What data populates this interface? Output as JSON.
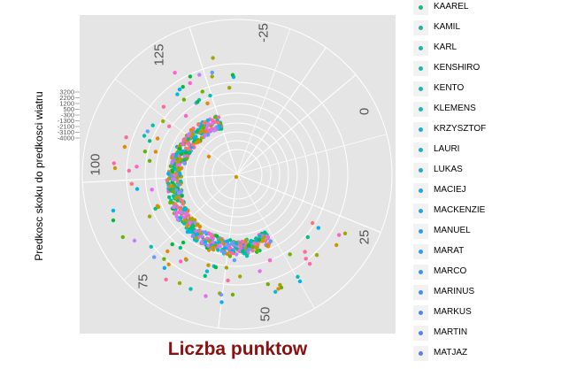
{
  "chart_data": {
    "type": "scatter",
    "coordinate_system": "polar",
    "xlabel": "Liczba punktow",
    "ylabel": "Predkosc skoku do predkosci wiatru",
    "angle_ticks": [
      "125",
      "-25",
      "0",
      "25",
      "50",
      "75",
      "100"
    ],
    "radial_ticks": [
      "3200",
      "2200",
      "1200",
      "500",
      "-300",
      "-1300",
      "-2100",
      "-3100",
      "-4000"
    ],
    "grid": true,
    "legend_position": "right",
    "legend": [
      {
        "label": "KAAREL",
        "color": "#1fb58a"
      },
      {
        "label": "KAMIL",
        "color": "#1fb59a"
      },
      {
        "label": "KARL",
        "color": "#1fb5a5"
      },
      {
        "label": "KENSHIRO",
        "color": "#1eb6ae"
      },
      {
        "label": "KENTO",
        "color": "#1db4b8"
      },
      {
        "label": "KLEMENS",
        "color": "#1cb3c2"
      },
      {
        "label": "KRZYSZTOF",
        "color": "#1cb0ca"
      },
      {
        "label": "LAURI",
        "color": "#1cadd1"
      },
      {
        "label": "LUKAS",
        "color": "#1eaad8"
      },
      {
        "label": "MACIEJ",
        "color": "#22a6de"
      },
      {
        "label": "MACKENZIE",
        "color": "#28a2e3"
      },
      {
        "label": "MANUEL",
        "color": "#2e9de6"
      },
      {
        "label": "MARAT",
        "color": "#3598ea"
      },
      {
        "label": "MARCO",
        "color": "#3c93ec"
      },
      {
        "label": "MARINUS",
        "color": "#438eee"
      },
      {
        "label": "MARKUS",
        "color": "#4a88ef"
      },
      {
        "label": "MARTIN",
        "color": "#5183ef"
      },
      {
        "label": "MATJAZ",
        "color": "#587dee"
      }
    ],
    "palette": [
      "#f8766d",
      "#e58700",
      "#c99800",
      "#a3a500",
      "#6bb100",
      "#00ba38",
      "#00bf7d",
      "#00c0af",
      "#00bcd8",
      "#00b0f6",
      "#619cff",
      "#b983ff",
      "#e76bf3",
      "#fd61d1",
      "#ff67a4"
    ],
    "panel_background": "#e5e5e5",
    "grid_color": "#ffffff"
  }
}
